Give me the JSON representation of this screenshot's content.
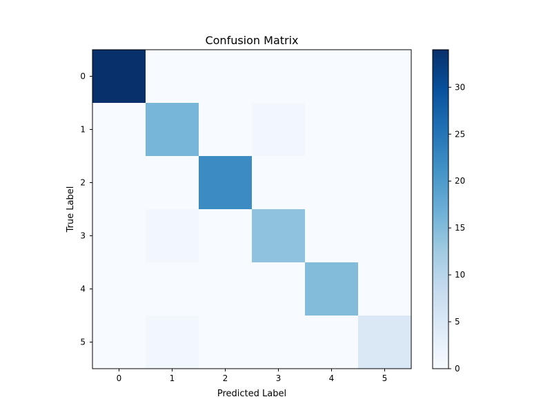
{
  "chart_data": {
    "type": "heatmap",
    "title": "Confusion Matrix",
    "xlabel": "Predicted Label",
    "ylabel": "True Label",
    "x_categories": [
      "0",
      "1",
      "2",
      "3",
      "4",
      "5"
    ],
    "y_categories": [
      "0",
      "1",
      "2",
      "3",
      "4",
      "5"
    ],
    "values": [
      [
        34,
        0,
        0,
        0,
        0,
        0
      ],
      [
        0,
        16,
        0,
        1,
        0,
        0
      ],
      [
        0,
        0,
        22,
        0,
        0,
        0
      ],
      [
        0,
        1,
        0,
        14,
        0,
        0
      ],
      [
        0,
        0,
        0,
        0,
        15,
        0
      ],
      [
        0,
        1,
        0,
        0,
        0,
        5
      ]
    ],
    "colormap": "Blues",
    "colorbar": {
      "range": [
        0,
        34
      ],
      "ticks": [
        0,
        5,
        10,
        15,
        20,
        25,
        30
      ],
      "tick_labels": [
        "0",
        "5",
        "10",
        "15",
        "20",
        "25",
        "30"
      ]
    }
  }
}
